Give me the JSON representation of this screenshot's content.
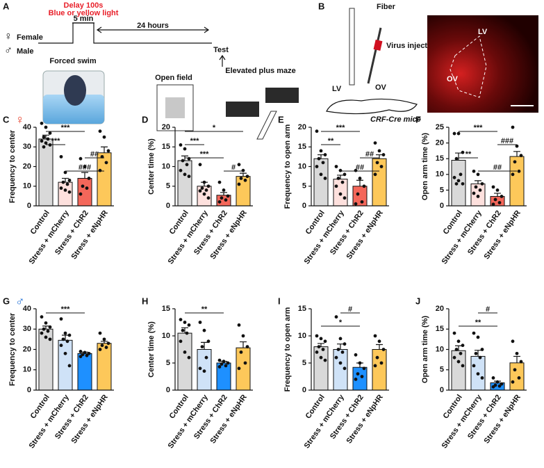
{
  "panel_a": {
    "letter": "A",
    "delay": "Delay 100s",
    "light": "Blue or yellow light",
    "duration": "5 min",
    "interval": "24 hours",
    "female_symbol": "♀",
    "female": "Female",
    "male_symbol": "♂",
    "male": "Male",
    "test": "Test",
    "swim": "Forced swim",
    "open_field": "Open field",
    "epm": "Elevated plus maze"
  },
  "panel_b": {
    "letter": "B",
    "fiber": "Fiber",
    "virus": "Virus injection",
    "lv": "LV",
    "ov": "OV",
    "mouse": "CRF-Cre mice",
    "image_lv": "LV",
    "image_ov": "OV"
  },
  "chart_data": [
    {
      "type": "bar",
      "panel": "C",
      "sex_symbol": "♀",
      "sex_color": "#e8412c",
      "ylabel": "Frequency to center",
      "categories": [
        "Control",
        "Stress + mCherry",
        "Stress + ChR2",
        "Stress + eNpHR"
      ],
      "colors": [
        "#d9d9d9",
        "#fde0dd",
        "#f4675a",
        "#fdc85a"
      ],
      "values": [
        34,
        12,
        14,
        27
      ],
      "errors": [
        2,
        2,
        3,
        3
      ],
      "points": [
        [
          42,
          40,
          37,
          35,
          34,
          33,
          32,
          31,
          30
        ],
        [
          25,
          17,
          13,
          12,
          11,
          9,
          8,
          7
        ],
        [
          24,
          20,
          14,
          10,
          9,
          6
        ],
        [
          38,
          35,
          28,
          25,
          22,
          18
        ]
      ],
      "ylim": [
        0,
        40
      ],
      "yticks": [
        0,
        10,
        20,
        30,
        40
      ],
      "annotations": [
        {
          "label": "***",
          "from": 0,
          "to": 2
        },
        {
          "label": "***",
          "from": 0,
          "to": 1
        },
        {
          "label": "##",
          "from": 2,
          "to": 3
        },
        {
          "label": "###",
          "from": 1,
          "to": 3
        }
      ]
    },
    {
      "type": "bar",
      "panel": "D",
      "ylabel": "Center time (%)",
      "categories": [
        "Control",
        "Stress + mCherry",
        "Stress + ChR2",
        "Stress + eNpHR"
      ],
      "colors": [
        "#d9d9d9",
        "#fde0dd",
        "#f4675a",
        "#fdc85a"
      ],
      "values": [
        11.5,
        5,
        2.7,
        7.5
      ],
      "errors": [
        1.2,
        1,
        0.7,
        0.8
      ],
      "points": [
        [
          15.5,
          14.5,
          12,
          11.5,
          10.5,
          9,
          8,
          7.5
        ],
        [
          10.5,
          6,
          5,
          4.5,
          4,
          3.8,
          3,
          2
        ],
        [
          6,
          4,
          2.5,
          2,
          1.5,
          1
        ],
        [
          10.5,
          9,
          7.5,
          7,
          6.5,
          5.5
        ]
      ],
      "ylim": [
        0,
        20
      ],
      "yticks": [
        0,
        5,
        10,
        15,
        20
      ],
      "annotations": [
        {
          "label": "*",
          "from": 0,
          "to": 3
        },
        {
          "label": "***",
          "from": 0,
          "to": 1
        },
        {
          "label": "***",
          "from": 0,
          "to": 2
        },
        {
          "label": "#",
          "from": 2,
          "to": 3
        }
      ]
    },
    {
      "type": "bar",
      "panel": "E",
      "ylabel": "Frequency to open arm",
      "categories": [
        "Control",
        "Stress + mCherry",
        "Stress + ChR2",
        "Stress + eNpHR"
      ],
      "colors": [
        "#d9d9d9",
        "#fde0dd",
        "#f4675a",
        "#fdc85a"
      ],
      "values": [
        12,
        6.8,
        5,
        12
      ],
      "errors": [
        1,
        1,
        1.5,
        1
      ],
      "points": [
        [
          19,
          14,
          13,
          12,
          11,
          10,
          8,
          7
        ],
        [
          10,
          9,
          8,
          7,
          6,
          5,
          3,
          2
        ],
        [
          9,
          7,
          5,
          3,
          1,
          0.5
        ],
        [
          16,
          14,
          13,
          11,
          10,
          8
        ]
      ],
      "ylim": [
        0,
        20
      ],
      "yticks": [
        0,
        5,
        10,
        15,
        20
      ],
      "annotations": [
        {
          "label": "***",
          "from": 0,
          "to": 2
        },
        {
          "label": "**",
          "from": 0,
          "to": 1
        },
        {
          "label": "##",
          "from": 2,
          "to": 3
        },
        {
          "label": "##",
          "from": 1,
          "to": 3
        }
      ]
    },
    {
      "type": "bar",
      "panel": "F",
      "ylabel": "Open arm time (%)",
      "categories": [
        "Control",
        "Stress + mCherry",
        "Stress + ChR2",
        "Stress + eNpHR"
      ],
      "colors": [
        "#d9d9d9",
        "#fde0dd",
        "#f4675a",
        "#fdc85a"
      ],
      "values": [
        14.5,
        7,
        3,
        15.7
      ],
      "errors": [
        2.3,
        1,
        1,
        1.6
      ],
      "points": [
        [
          23,
          23,
          17,
          15,
          10,
          9,
          8,
          7,
          7
        ],
        [
          11,
          10,
          7,
          6,
          5,
          4,
          3
        ],
        [
          6,
          5,
          3,
          2,
          1,
          0.5
        ],
        [
          25,
          19,
          16,
          14,
          11,
          10
        ]
      ],
      "ylim": [
        0,
        25
      ],
      "yticks": [
        0,
        5,
        10,
        15,
        20,
        25
      ],
      "annotations": [
        {
          "label": "***",
          "from": 0,
          "to": 2
        },
        {
          "label": "###",
          "from": 2,
          "to": 3
        },
        {
          "label": "**",
          "from": 0,
          "to": 1
        },
        {
          "label": "##",
          "from": 1,
          "to": 3
        }
      ]
    },
    {
      "type": "bar",
      "panel": "G",
      "sex_symbol": "♂",
      "sex_color": "#1f6fd6",
      "ylabel": "Frequency to center",
      "categories": [
        "Control",
        "Stress + mCherry",
        "Stress + ChR2",
        "Stress + eNpHR"
      ],
      "colors": [
        "#d9d9d9",
        "#cfe2f7",
        "#1e90ff",
        "#fdc85a"
      ],
      "values": [
        30,
        24.5,
        18,
        23
      ],
      "errors": [
        1.5,
        2.5,
        0.7,
        1
      ],
      "points": [
        [
          36,
          33,
          31,
          30,
          29,
          28,
          26,
          25
        ],
        [
          35,
          28,
          27,
          25,
          24,
          22,
          18,
          12
        ],
        [
          19,
          18.5,
          18,
          17.5,
          17,
          16.5
        ],
        [
          28,
          25,
          23,
          22,
          21,
          20
        ]
      ],
      "ylim": [
        0,
        40
      ],
      "yticks": [
        0,
        10,
        20,
        30,
        40
      ],
      "annotations": [
        {
          "label": "***",
          "from": 0,
          "to": 2
        }
      ]
    },
    {
      "type": "bar",
      "panel": "H",
      "ylabel": "Center time (%)",
      "categories": [
        "Control",
        "Stress + mCherry",
        "Stress + ChR2",
        "Stress + eNpHR"
      ],
      "colors": [
        "#d9d9d9",
        "#cfe2f7",
        "#1e90ff",
        "#fdc85a"
      ],
      "values": [
        10.5,
        7.5,
        5,
        7.8
      ],
      "errors": [
        1,
        1.3,
        0.3,
        1.1
      ],
      "points": [
        [
          13,
          12.5,
          12,
          11,
          10.5,
          9,
          7,
          6
        ],
        [
          12.5,
          11,
          9,
          8,
          6,
          4,
          3.5
        ],
        [
          5.5,
          5.3,
          5,
          4.8,
          4.5,
          4.3
        ],
        [
          12,
          10,
          8,
          7,
          5,
          4
        ]
      ],
      "ylim": [
        0,
        15
      ],
      "yticks": [
        0,
        5,
        10,
        15
      ],
      "annotations": [
        {
          "label": "**",
          "from": 0,
          "to": 2
        }
      ]
    },
    {
      "type": "bar",
      "panel": "I",
      "ylabel": "Frequency to open arm",
      "categories": [
        "Control",
        "Stress + mCherry",
        "Stress + ChR2",
        "Stress + eNpHR"
      ],
      "colors": [
        "#d9d9d9",
        "#cfe2f7",
        "#1e90ff",
        "#fdc85a"
      ],
      "values": [
        8,
        7.5,
        4.2,
        7.5
      ],
      "errors": [
        0.6,
        1,
        0.8,
        0.9
      ],
      "points": [
        [
          10,
          9.5,
          9,
          8,
          7.5,
          7,
          6,
          5.5
        ],
        [
          13.5,
          9.5,
          8.5,
          7.5,
          7,
          6,
          5,
          4
        ],
        [
          6.5,
          5,
          4,
          3,
          2.5,
          2
        ],
        [
          10,
          9,
          7.5,
          6,
          5,
          4.5
        ]
      ],
      "ylim": [
        0,
        15
      ],
      "yticks": [
        0,
        5,
        10,
        15
      ],
      "annotations": [
        {
          "label": "#",
          "from": 1,
          "to": 2
        },
        {
          "label": "*",
          "from": 0,
          "to": 2
        }
      ]
    },
    {
      "type": "bar",
      "panel": "J",
      "ylabel": "Open arm time (%)",
      "categories": [
        "Control",
        "Stress + mCherry",
        "Stress + ChR2",
        "Stress + eNpHR"
      ],
      "colors": [
        "#d9d9d9",
        "#cfe2f7",
        "#1e90ff",
        "#fdc85a"
      ],
      "values": [
        9.7,
        8.3,
        1.8,
        6.7
      ],
      "errors": [
        1.2,
        1.5,
        0.4,
        1.6
      ],
      "points": [
        [
          14,
          12,
          11,
          10,
          9,
          8,
          7,
          6
        ],
        [
          14,
          13,
          10,
          9,
          8,
          6,
          4,
          3
        ],
        [
          3,
          2,
          1.5,
          1.2,
          1,
          0.8
        ],
        [
          12,
          9,
          7,
          5,
          3,
          2
        ]
      ],
      "ylim": [
        0,
        20
      ],
      "yticks": [
        0,
        5,
        10,
        15,
        20
      ],
      "annotations": [
        {
          "label": "#",
          "from": 1,
          "to": 2
        },
        {
          "label": "**",
          "from": 0,
          "to": 2
        }
      ]
    }
  ]
}
